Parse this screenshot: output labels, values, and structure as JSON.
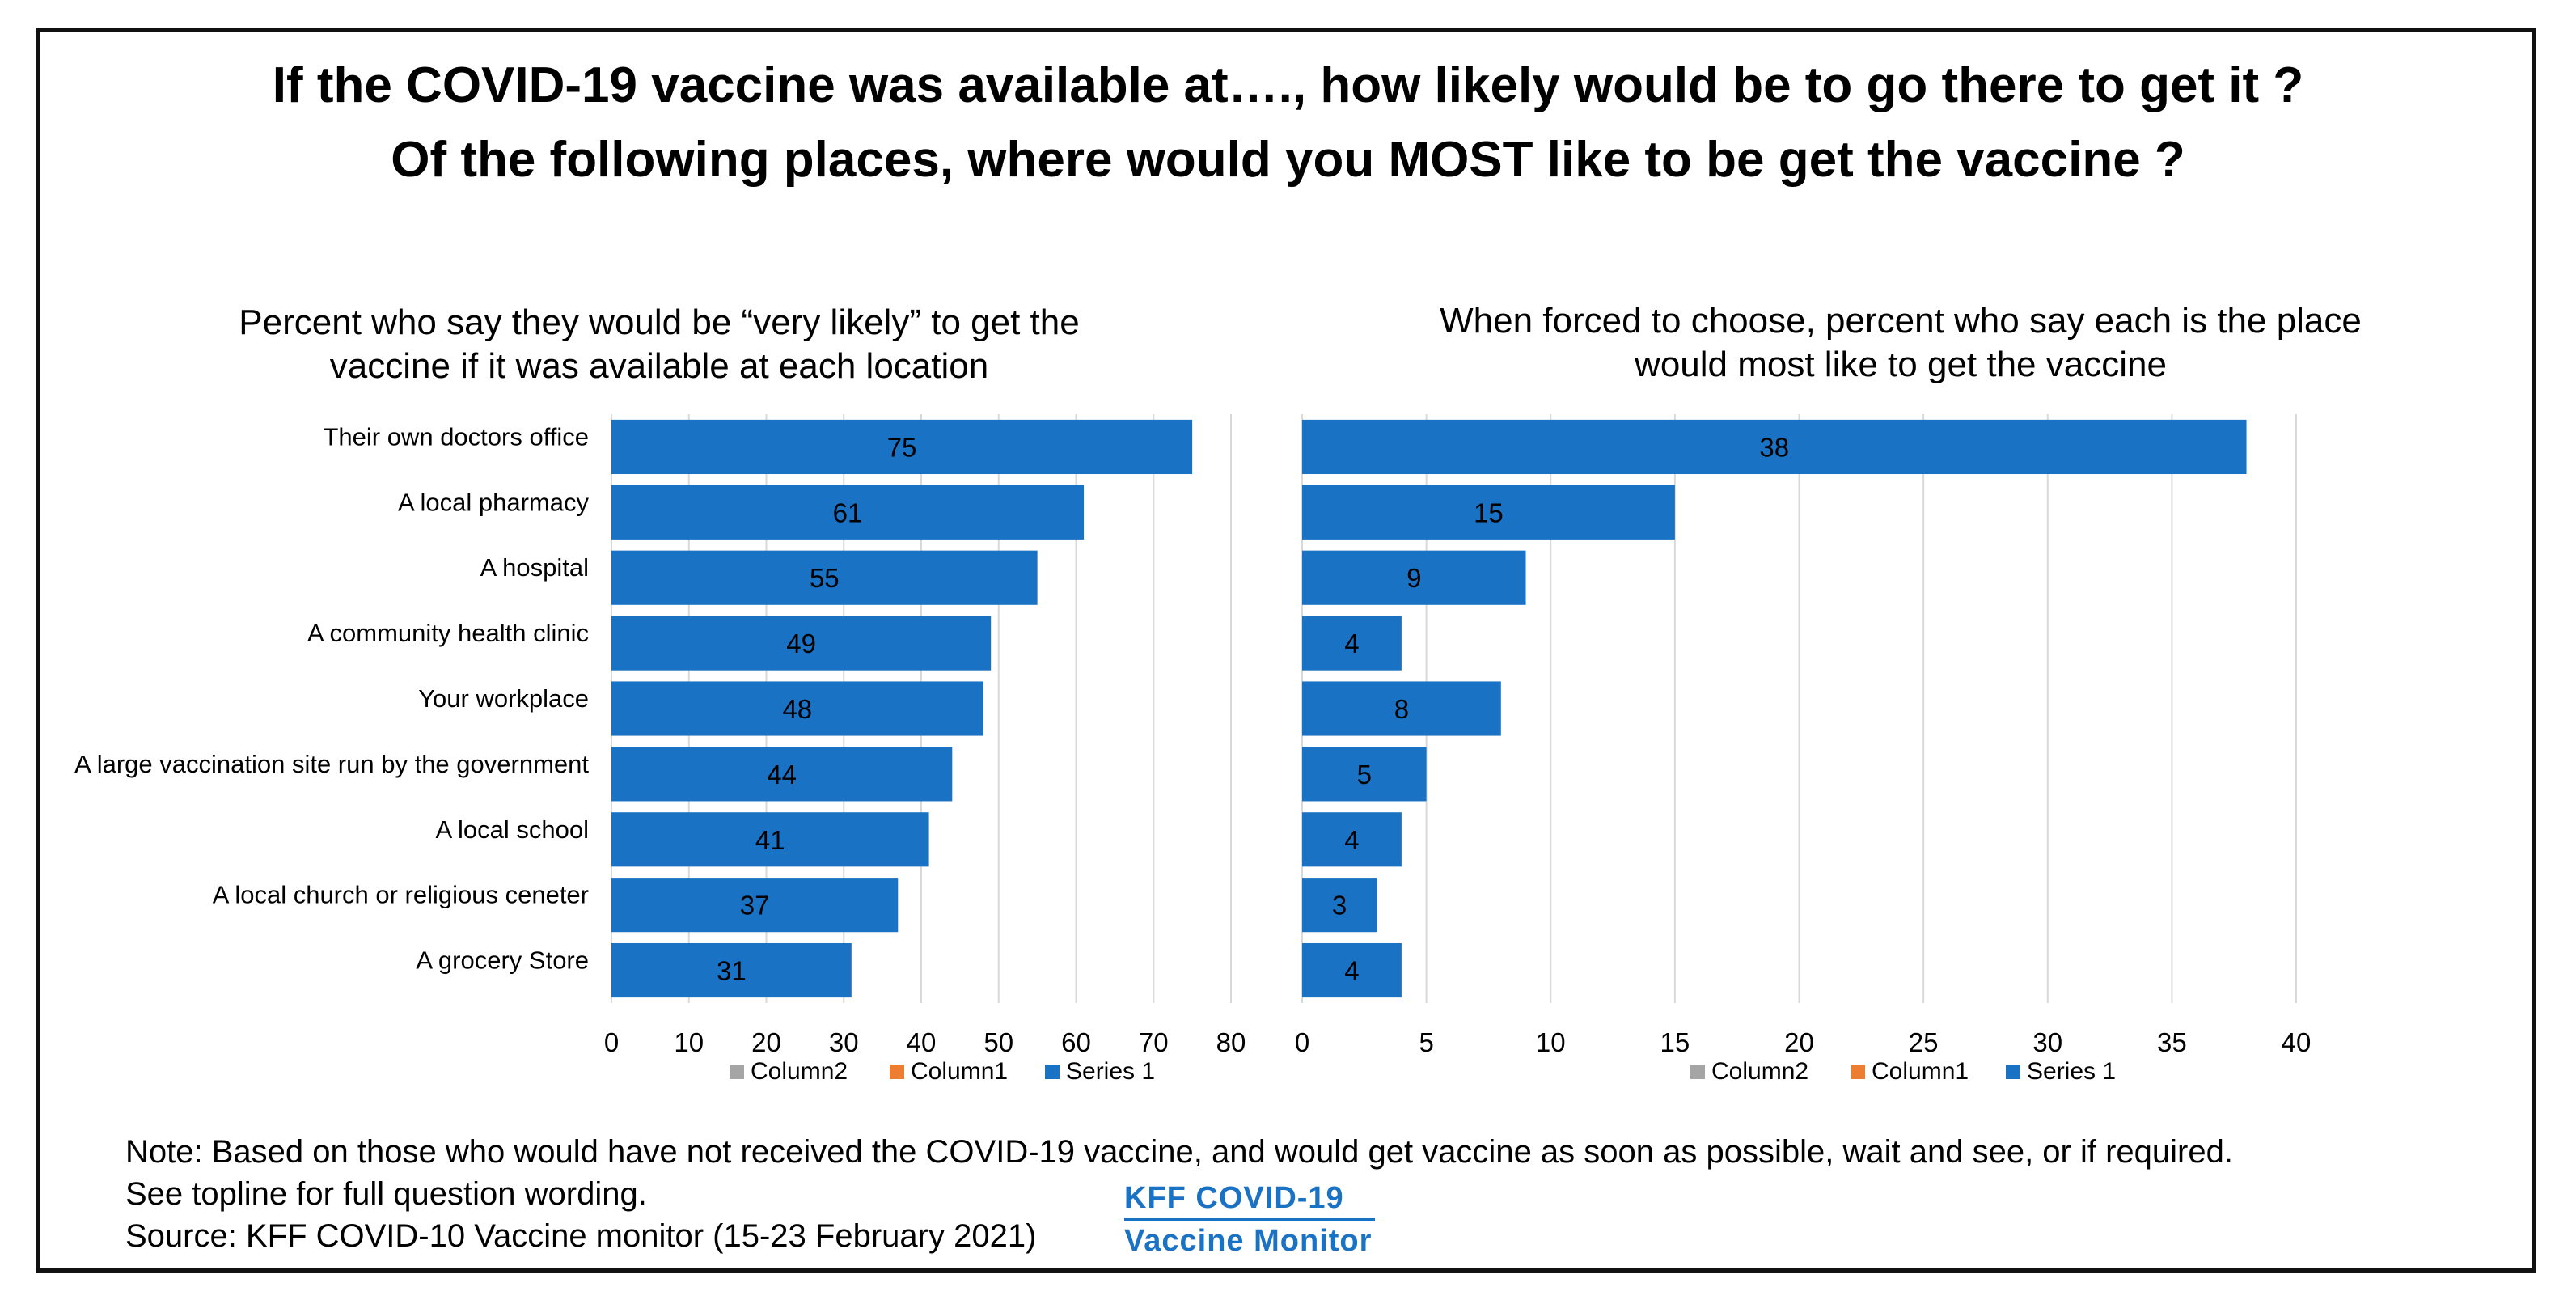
{
  "title_line1": "If the COVID-19 vaccine was available at…., how likely would be to go there to get it ?",
  "title_line2": "Of the following places, where would you MOST like to be get the vaccine ?",
  "chart_data": [
    {
      "type": "bar",
      "orientation": "horizontal",
      "title_line1": "Percent who say they would be “very likely” to get the",
      "title_line2": "vaccine if it was available at each location",
      "categories": [
        "Their own doctors office",
        "A local pharmacy",
        "A hospital",
        "A community health clinic",
        "Your workplace",
        "A large vaccination site run by the government",
        "A local school",
        "A local church or religious ceneter",
        "A grocery Store"
      ],
      "series": [
        {
          "name": "Series 1",
          "values": [
            75,
            61,
            55,
            49,
            48,
            44,
            41,
            37,
            31
          ]
        }
      ],
      "xlim": [
        0,
        80
      ],
      "xticks": [
        0,
        10,
        20,
        30,
        40,
        50,
        60,
        70,
        80
      ],
      "grid": true,
      "legend": [
        "Column2",
        "Column1",
        "Series 1"
      ],
      "legend_position": "bottom"
    },
    {
      "type": "bar",
      "orientation": "horizontal",
      "title_line1": "When forced to choose, percent who say each is the place",
      "title_line2": "would most like to get the vaccine",
      "categories": [
        "Their own doctors office",
        "A local pharmacy",
        "A hospital",
        "A community health clinic",
        "Your workplace",
        "A large vaccination site run by the government",
        "A local school",
        "A local church or religious ceneter",
        "A grocery Store"
      ],
      "series": [
        {
          "name": "Series 1",
          "values": [
            38,
            15,
            9,
            4,
            8,
            5,
            4,
            3,
            4
          ]
        }
      ],
      "xlim": [
        0,
        40
      ],
      "xticks": [
        0,
        5,
        10,
        15,
        20,
        25,
        30,
        35,
        40
      ],
      "grid": true,
      "legend": [
        "Column2",
        "Column1",
        "Series 1"
      ],
      "legend_position": "bottom"
    }
  ],
  "colors": {
    "bar": "#1a72c4",
    "grid": "#d9d9d9",
    "column2": "#a5a5a5",
    "column1": "#ed7d31",
    "series1": "#1a72c4"
  },
  "note_line1": "Note: Based on those who would have not received the COVID-19 vaccine, and would get vaccine as soon as possible, wait and see, or if required.",
  "note_line2": "See topline for full question wording.",
  "source": "Source: KFF COVID-10 Vaccine monitor (15-23 February 2021)",
  "logo_line1": "KFF COVID-19",
  "logo_line2": "Vaccine Monitor"
}
